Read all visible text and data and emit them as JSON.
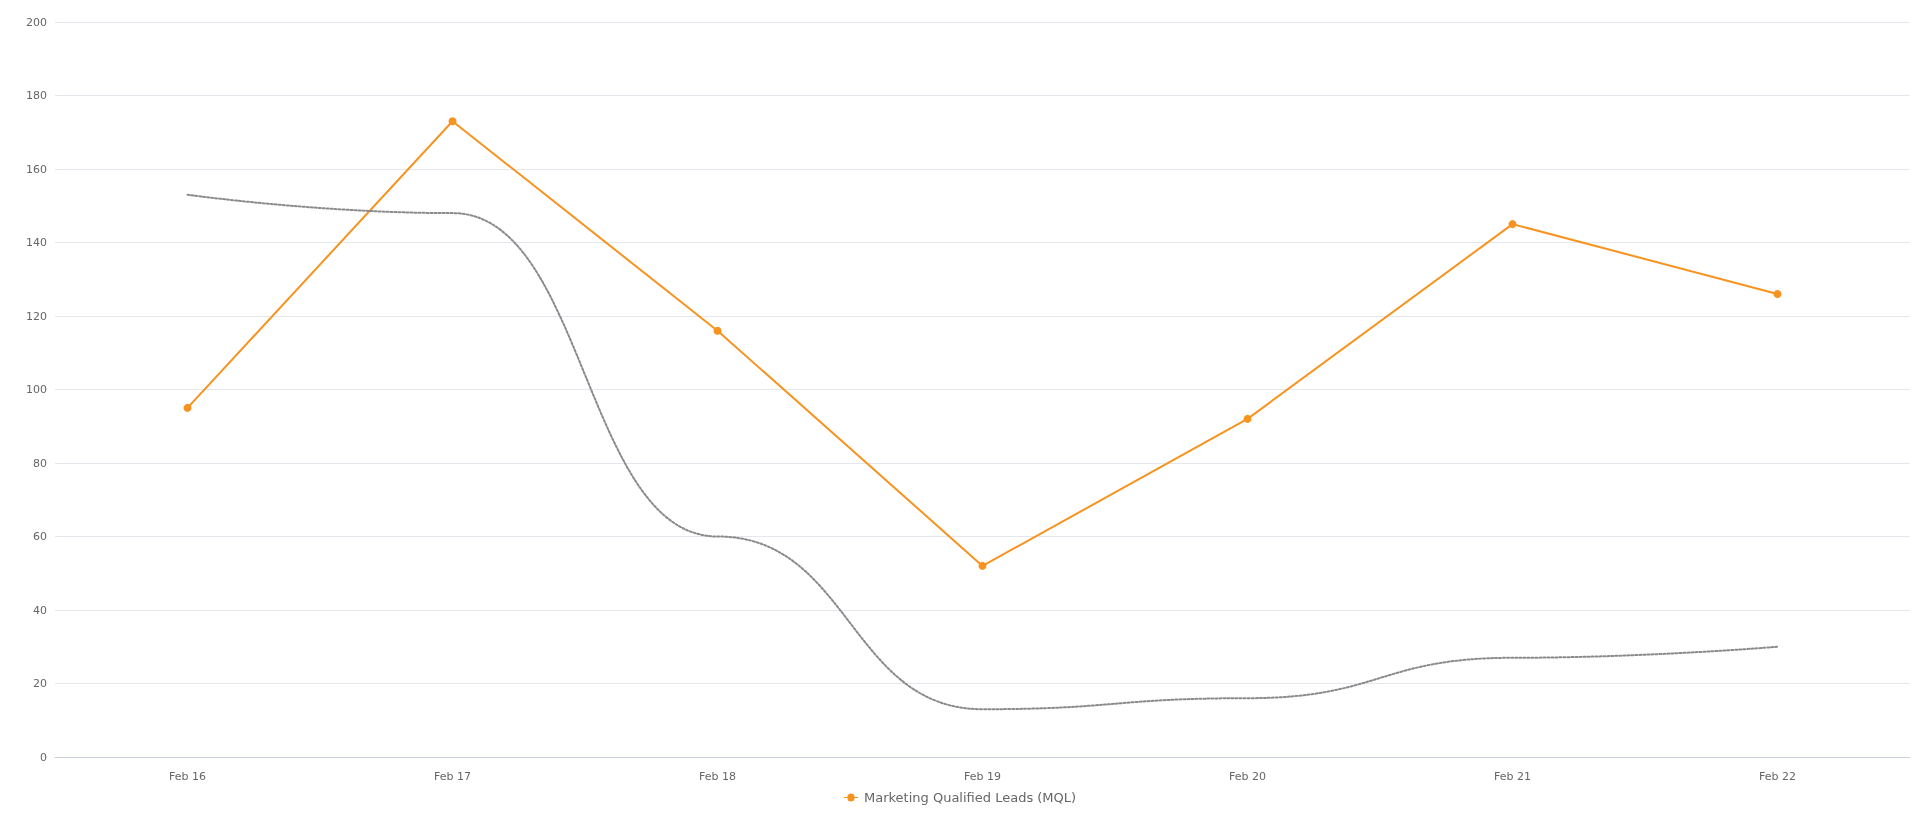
{
  "chart_data": {
    "type": "line",
    "categories": [
      "Feb 16",
      "Feb 17",
      "Feb 18",
      "Feb 19",
      "Feb 20",
      "Feb 21",
      "Feb 22"
    ],
    "series": [
      {
        "name": "Marketing Qualified Leads (MQL)",
        "color": "#f7931e",
        "values": [
          95,
          173,
          116,
          52,
          92,
          145,
          126
        ],
        "marker": "circle",
        "line_style": "solid"
      },
      {
        "color": "#8a8a8a",
        "values": [
          153,
          148,
          60,
          13,
          16,
          27,
          30
        ],
        "marker": "none",
        "line_style": "dotted"
      }
    ],
    "ylim": [
      0,
      200
    ],
    "yticks": [
      0,
      20,
      40,
      60,
      80,
      100,
      120,
      140,
      160,
      180,
      200
    ],
    "grid": "y",
    "legend": "bottom"
  }
}
